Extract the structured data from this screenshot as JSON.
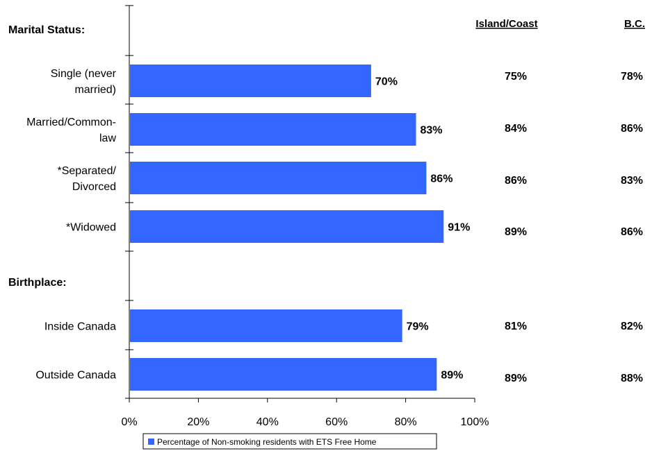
{
  "chart_data": {
    "type": "bar",
    "orientation": "horizontal",
    "xlim": [
      0,
      100
    ],
    "x_ticks": [
      "0%",
      "20%",
      "40%",
      "60%",
      "80%",
      "100%"
    ],
    "legend": {
      "label": "Percentage of Non-smoking residents with ETS Free Home",
      "placement": "bottom",
      "color": "#3366FF"
    },
    "bar_color": "#3366FF",
    "columns": [
      "Island/Coast",
      "B.C."
    ],
    "sections": [
      {
        "title": "Marital Status:",
        "rows": [
          {
            "label": [
              "Single (never",
              "married)"
            ],
            "value": 70,
            "value_label": "70%",
            "island_coast": "75%",
            "bc": "78%"
          },
          {
            "label": [
              "Married/Common-",
              "law"
            ],
            "value": 83,
            "value_label": "83%",
            "island_coast": "84%",
            "bc": "86%"
          },
          {
            "label": [
              "*Separated/",
              "Divorced"
            ],
            "value": 86,
            "value_label": "86%",
            "island_coast": "86%",
            "bc": "83%"
          },
          {
            "label": [
              "*Widowed"
            ],
            "value": 91,
            "value_label": "91%",
            "island_coast": "89%",
            "bc": "86%"
          }
        ]
      },
      {
        "title": "Birthplace:",
        "rows": [
          {
            "label": [
              "Inside Canada"
            ],
            "value": 79,
            "value_label": "79%",
            "island_coast": "81%",
            "bc": "82%"
          },
          {
            "label": [
              "Outside Canada"
            ],
            "value": 89,
            "value_label": "89%",
            "island_coast": "89%",
            "bc": "88%"
          }
        ]
      }
    ]
  }
}
